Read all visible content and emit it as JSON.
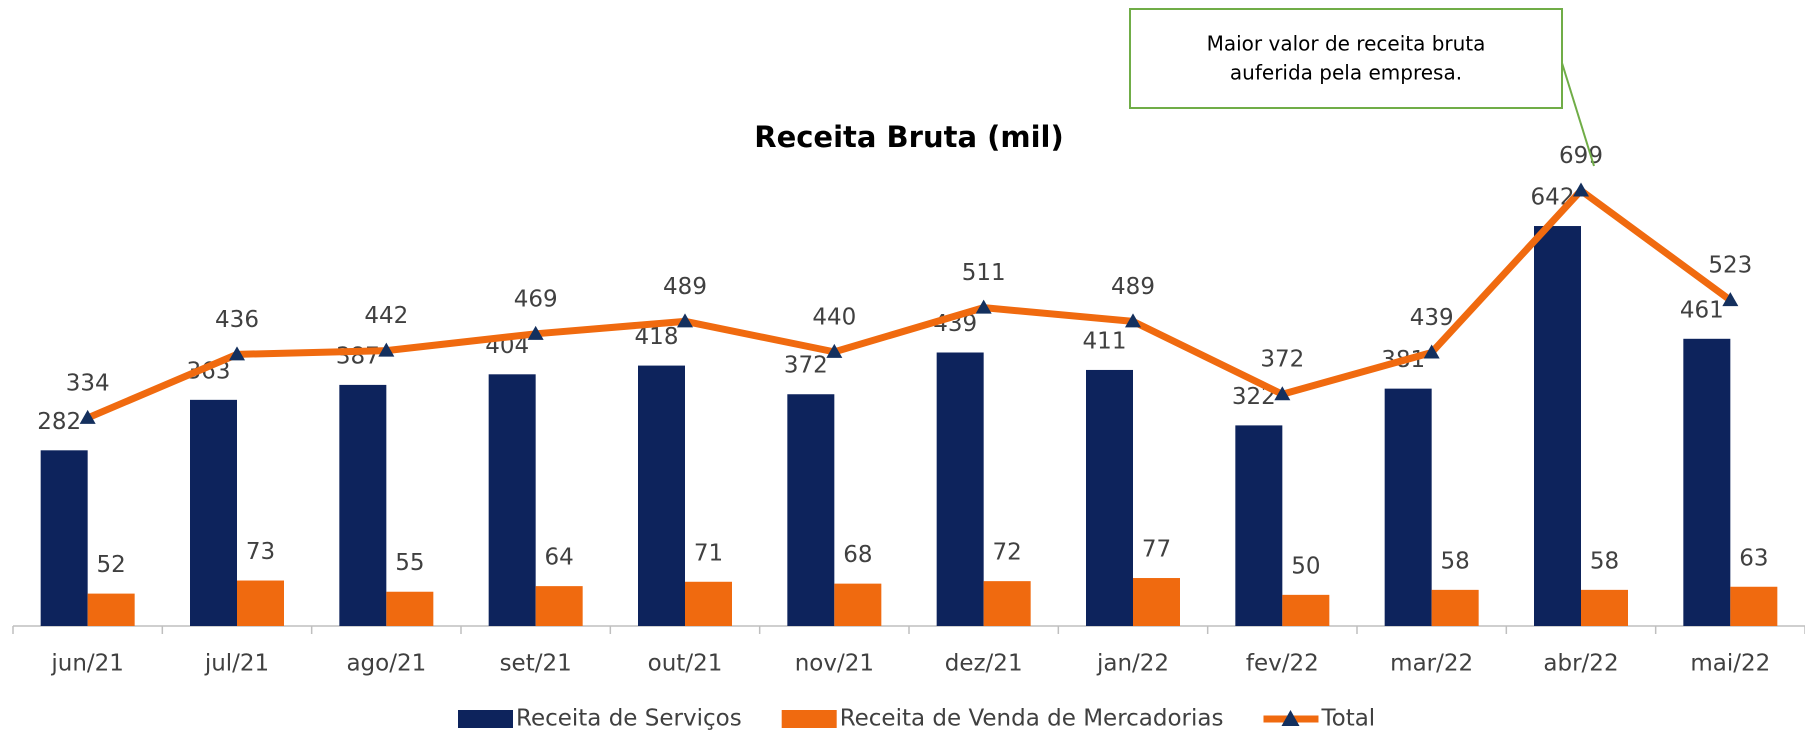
{
  "chart_data": {
    "type": "bar",
    "title": "Receita Bruta (mil)",
    "categories": [
      "jun/21",
      "jul/21",
      "ago/21",
      "set/21",
      "out/21",
      "nov/21",
      "dez/21",
      "jan/22",
      "fev/22",
      "mar/22",
      "abr/22",
      "mai/22"
    ],
    "series": [
      {
        "name": "Receita de Serviços",
        "type": "bar",
        "color": "#0d235c",
        "values": [
          282,
          363,
          387,
          404,
          418,
          372,
          439,
          411,
          322,
          381,
          642,
          461
        ]
      },
      {
        "name": "Receita de Venda de Mercadorias",
        "type": "bar",
        "color": "#f06a0f",
        "values": [
          52,
          73,
          55,
          64,
          71,
          68,
          72,
          77,
          50,
          58,
          58,
          63
        ]
      },
      {
        "name": "Total",
        "type": "line",
        "color": "#f06a0f",
        "marker_color": "#14305e",
        "values": [
          334,
          436,
          442,
          469,
          489,
          440,
          511,
          489,
          372,
          439,
          699,
          523
        ]
      }
    ],
    "ylim": [
      0,
      1000
    ],
    "annotation": {
      "lines": [
        "Maior valor de receita bruta",
        "auferida pela empresa."
      ],
      "border": "#70ad47"
    }
  }
}
